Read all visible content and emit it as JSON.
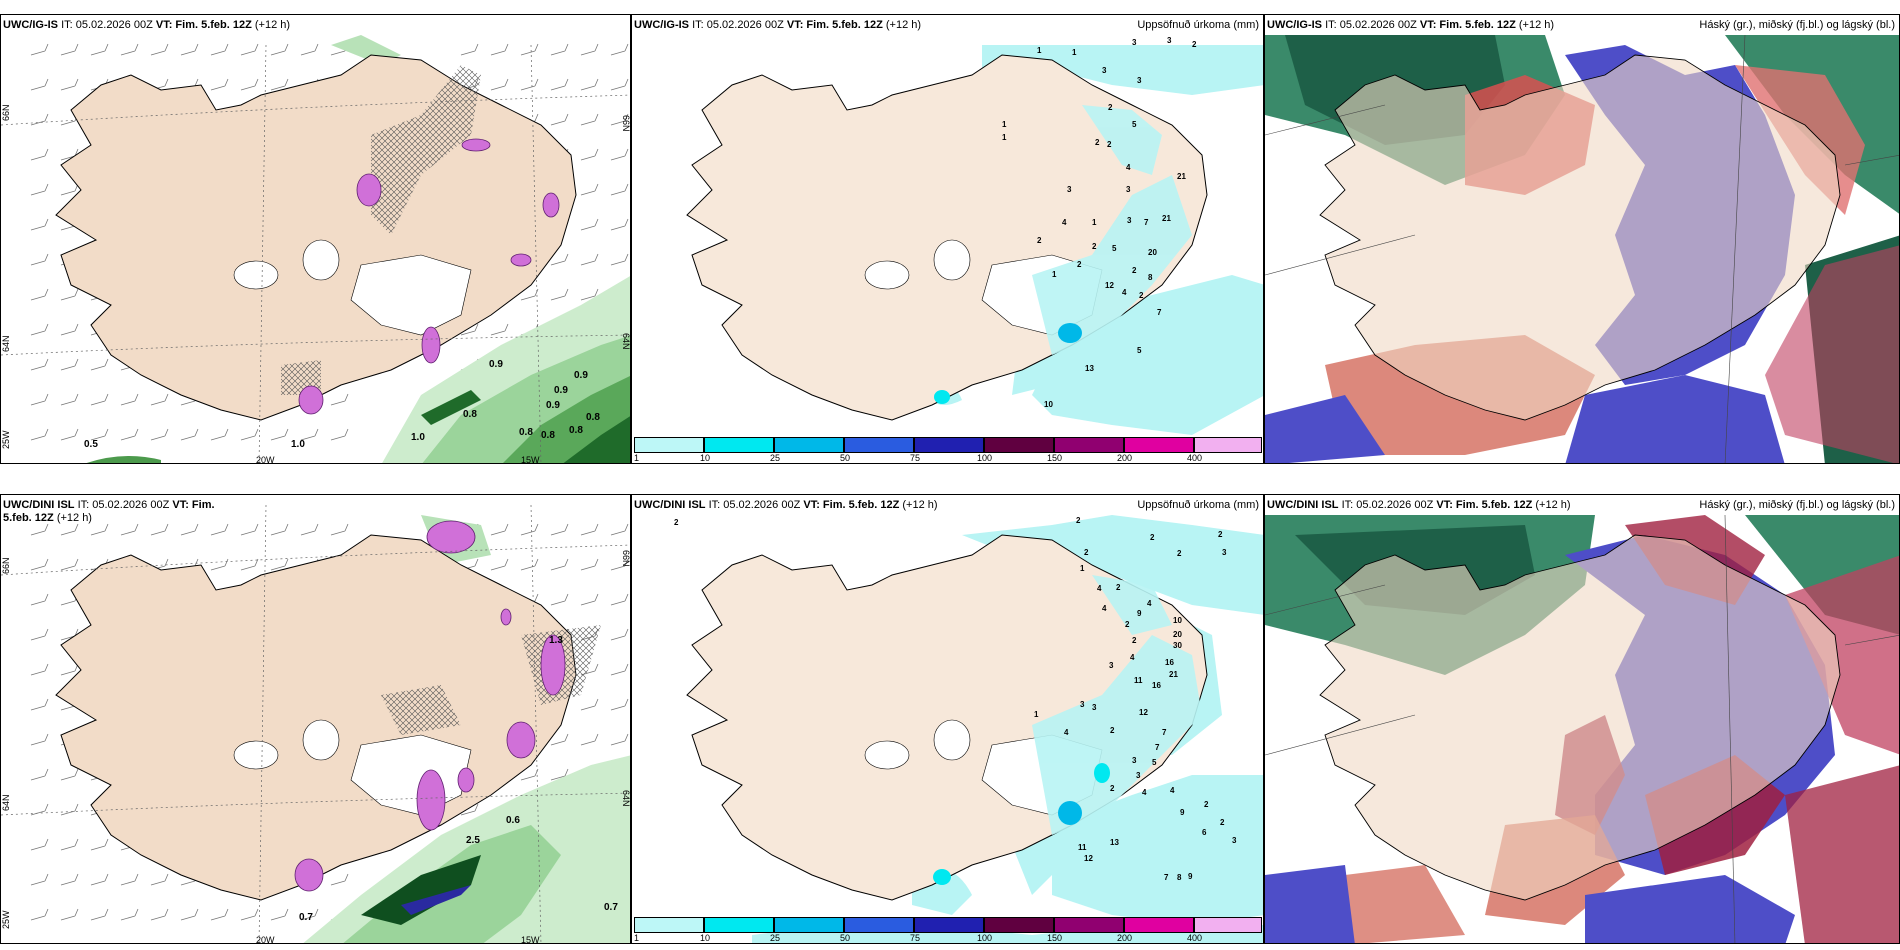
{
  "panels": {
    "p1": {
      "title_model": "UWC/IG-IS",
      "title_it": "IT: 05.02.2026 00Z",
      "title_vt": "VT: Fim. 5.feb. 12Z",
      "title_lead": "(+12 h)",
      "right_title": ""
    },
    "p2": {
      "title_model": "UWC/IG-IS",
      "title_it": "IT: 05.02.2026 00Z",
      "title_vt": "VT: Fim. 5.feb. 12Z",
      "title_lead": "(+12 h)",
      "right_title": "Uppsöfnuð úrkoma (mm)"
    },
    "p3": {
      "title_model": "UWC/IG-IS",
      "title_it": "IT: 05.02.2026 00Z",
      "title_vt": "VT: Fim. 5.feb. 12Z",
      "title_lead": "(+12 h)",
      "right_title": "Háský (gr.), miðský (fj.bl.) og lágský (bl.)"
    },
    "p4": {
      "title_model": "UWC/DINI ISL",
      "title_it": "IT: 05.02.2026 00Z",
      "title_vt": "VT: Fim. 5.feb. 12Z",
      "title_lead": "(+12 h)",
      "right_title": ""
    },
    "p5": {
      "title_model": "UWC/DINI ISL",
      "title_it": "IT: 05.02.2026 00Z",
      "title_vt": "VT: Fim. 5.feb. 12Z",
      "title_lead": "(+12 h)",
      "right_title": "Uppsöfnuð úrkoma (mm)"
    },
    "p6": {
      "title_model": "UWC/DINI ISL",
      "title_it": "IT: 05.02.2026 00Z",
      "title_vt": "VT: Fim. 5.feb. 12Z",
      "title_lead": "(+12 h)",
      "right_title": "Háský (gr.), miðský (fj.bl.) og lágský (bl.)"
    }
  },
  "grid_labels": {
    "lat66": "66N",
    "lat64": "64N",
    "lat65": "65N",
    "lon25": "25W",
    "lon20": "20W",
    "lon15": "15W"
  },
  "colorbar": {
    "labels": [
      "1",
      "10",
      "25",
      "50",
      "75",
      "100",
      "150",
      "200",
      "400"
    ],
    "colors": [
      "#bdf7f7",
      "#00e8f0",
      "#00b8e8",
      "#2a5ce0",
      "#2020b0",
      "#600040",
      "#900070",
      "#e000a0",
      "#f2b0f0"
    ]
  },
  "annotations": {
    "p1": [
      "0.5",
      "0.9",
      "0.9",
      "0.9",
      "0.9",
      "0.8",
      "0.8",
      "0.8",
      "0.8",
      "1.0",
      "1.0",
      "0.8"
    ],
    "p2": [
      "1",
      "1",
      "3",
      "2",
      "3",
      "3",
      "3",
      "1",
      "1",
      "2",
      "5",
      "2",
      "2",
      "4",
      "3",
      "21",
      "3",
      "4",
      "1",
      "3",
      "7",
      "21",
      "2",
      "2",
      "5",
      "2",
      "20",
      "1",
      "8",
      "2",
      "7",
      "12",
      "5",
      "4",
      "13",
      "10",
      "2"
    ],
    "p4": [
      "0.7",
      "0.6",
      "0.7",
      "2.5",
      "1.3"
    ],
    "p5": [
      "2",
      "2",
      "2",
      "2",
      "3",
      "2",
      "2",
      "1",
      "4",
      "2",
      "4",
      "4",
      "9",
      "10",
      "2",
      "20",
      "30",
      "2",
      "16",
      "21",
      "4",
      "3",
      "11",
      "16",
      "3",
      "3",
      "12",
      "1",
      "4",
      "7",
      "2",
      "3",
      "5",
      "2",
      "3",
      "4",
      "4",
      "7",
      "9",
      "6",
      "11",
      "13",
      "12",
      "7",
      "8",
      "9",
      "2",
      "2",
      "3"
    ]
  },
  "colors": {
    "land": "#f5e3d0",
    "coast": "#000000",
    "precip_light": "#b8f4f4",
    "green_dark": "#0a5a20",
    "purple": "#d070d8"
  }
}
